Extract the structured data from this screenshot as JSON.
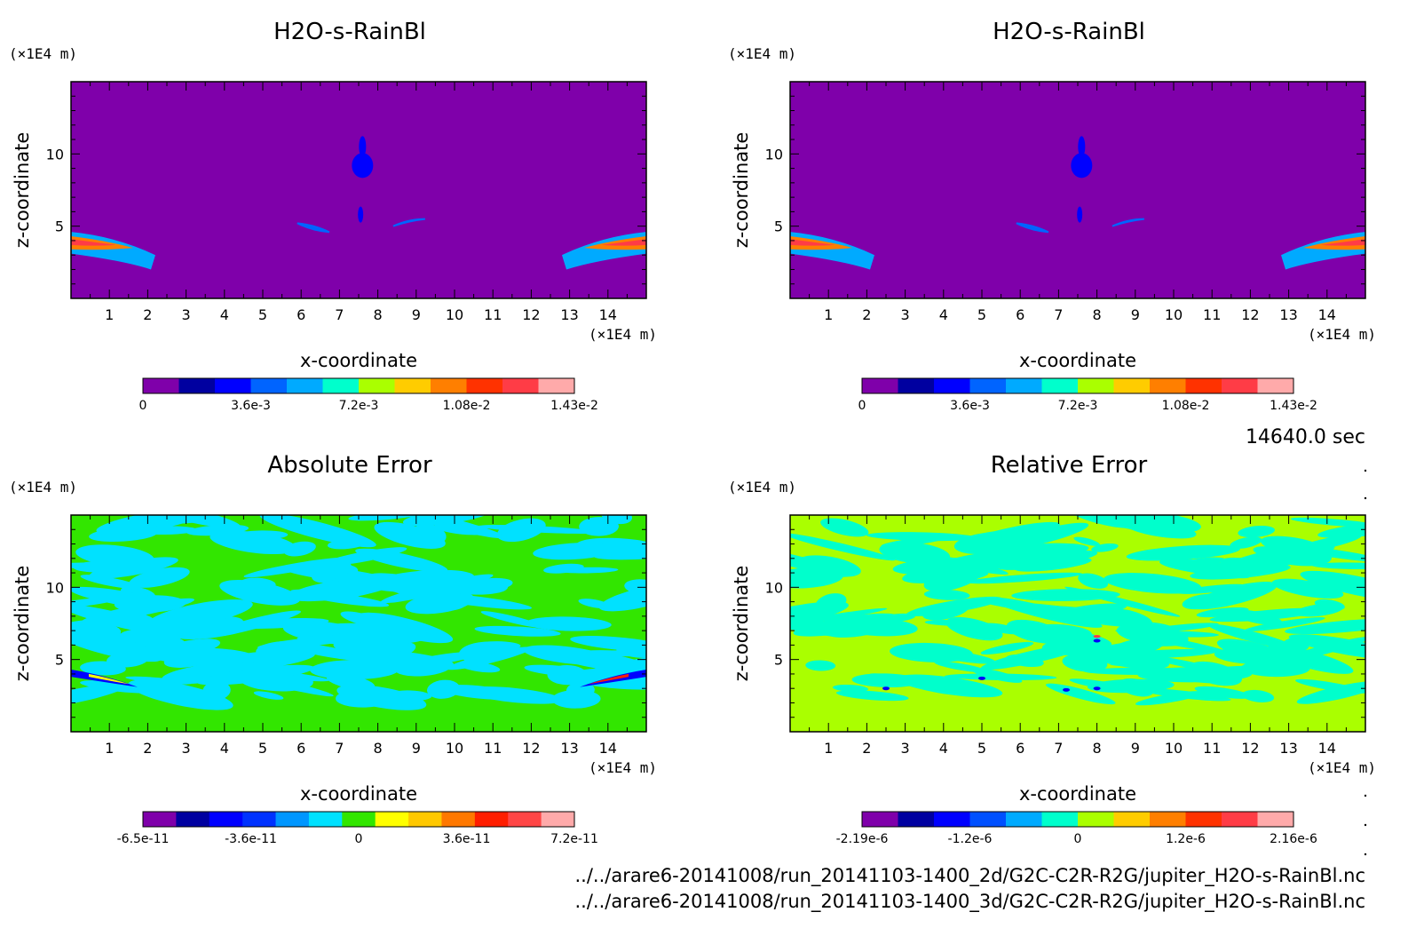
{
  "chart_data": [
    {
      "type": "heatmap",
      "title": "H2O-s-RainBl",
      "xlabel": "x-coordinate",
      "ylabel": "z-coordinate",
      "x_unit": "(×1E4 m)",
      "y_unit": "(×1E4 m)",
      "xlim": [
        0,
        15
      ],
      "ylim": [
        0,
        15
      ],
      "xticks": [
        "1",
        "2",
        "3",
        "4",
        "5",
        "6",
        "7",
        "8",
        "9",
        "10",
        "11",
        "12",
        "13",
        "14"
      ],
      "yticks": [
        "5",
        "10"
      ],
      "colorbar": {
        "colors": [
          "#7f00aa",
          "#0000a0",
          "#0000ff",
          "#0064ff",
          "#00aaff",
          "#00ffcc",
          "#aaff00",
          "#ffcc00",
          "#ff7f00",
          "#ff3200",
          "#ff3c46",
          "#ffaaaa"
        ],
        "tick_labels": [
          "0",
          "3.6e-3",
          "7.2e-3",
          "1.08e-2",
          "1.43e-2"
        ]
      },
      "background_value": "0",
      "features": [
        "rain band near z≈3.5 at left edge x 0–2",
        "rain band near z≈3.5 at right edge x 13–15",
        "small blue cell near x≈7.6, z≈9"
      ]
    },
    {
      "type": "heatmap",
      "title": "H2O-s-RainBl",
      "xlabel": "x-coordinate",
      "ylabel": "z-coordinate",
      "x_unit": "(×1E4 m)",
      "y_unit": "(×1E4 m)",
      "xlim": [
        0,
        15
      ],
      "ylim": [
        0,
        15
      ],
      "xticks": [
        "1",
        "2",
        "3",
        "4",
        "5",
        "6",
        "7",
        "8",
        "9",
        "10",
        "11",
        "12",
        "13",
        "14"
      ],
      "yticks": [
        "5",
        "10"
      ],
      "colorbar": {
        "colors": [
          "#7f00aa",
          "#0000a0",
          "#0000ff",
          "#0064ff",
          "#00aaff",
          "#00ffcc",
          "#aaff00",
          "#ffcc00",
          "#ff7f00",
          "#ff3200",
          "#ff3c46",
          "#ffaaaa"
        ],
        "tick_labels": [
          "0",
          "3.6e-3",
          "7.2e-3",
          "1.08e-2",
          "1.43e-2"
        ]
      }
    },
    {
      "type": "heatmap",
      "title": "Absolute Error",
      "xlabel": "x-coordinate",
      "ylabel": "z-coordinate",
      "x_unit": "(×1E4 m)",
      "y_unit": "(×1E4 m)",
      "xlim": [
        0,
        15
      ],
      "ylim": [
        0,
        15
      ],
      "xticks": [
        "1",
        "2",
        "3",
        "4",
        "5",
        "6",
        "7",
        "8",
        "9",
        "10",
        "11",
        "12",
        "13",
        "14"
      ],
      "yticks": [
        "5",
        "10"
      ],
      "colorbar": {
        "colors": [
          "#7f00aa",
          "#0000a0",
          "#0000ff",
          "#0032ff",
          "#0096ff",
          "#00e1ff",
          "#32e600",
          "#ffff00",
          "#ffc800",
          "#ff7800",
          "#ff1e00",
          "#ff4646",
          "#ffaaaa"
        ],
        "tick_labels": [
          "-6.5e-11",
          "-3.6e-11",
          "0",
          "3.6e-11",
          "7.2e-11"
        ]
      }
    },
    {
      "type": "heatmap",
      "title": "Relative Error",
      "xlabel": "x-coordinate",
      "ylabel": "z-coordinate",
      "x_unit": "(×1E4 m)",
      "y_unit": "(×1E4 m)",
      "xlim": [
        0,
        15
      ],
      "ylim": [
        0,
        15
      ],
      "xticks": [
        "1",
        "2",
        "3",
        "4",
        "5",
        "6",
        "7",
        "8",
        "9",
        "10",
        "11",
        "12",
        "13",
        "14"
      ],
      "yticks": [
        "5",
        "10"
      ],
      "colorbar": {
        "colors": [
          "#7f00aa",
          "#0000a0",
          "#0000ff",
          "#0050ff",
          "#00aaff",
          "#00ffcc",
          "#aaff00",
          "#ffcc00",
          "#ff7f00",
          "#ff3200",
          "#ff3c46",
          "#ffaaaa"
        ],
        "tick_labels": [
          "-2.19e-6",
          "-1.2e-6",
          "0",
          "1.2e-6",
          "2.16e-6"
        ]
      }
    }
  ],
  "time_label": "14640.0 sec",
  "footer": {
    "line1": "../../arare6-20141008/run_20141103-1400_2d/G2C-C2R-R2G/jupiter_H2O-s-RainBl.nc",
    "line2": "../../arare6-20141008/run_20141103-1400_3d/G2C-C2R-R2G/jupiter_H2O-s-RainBl.nc"
  }
}
